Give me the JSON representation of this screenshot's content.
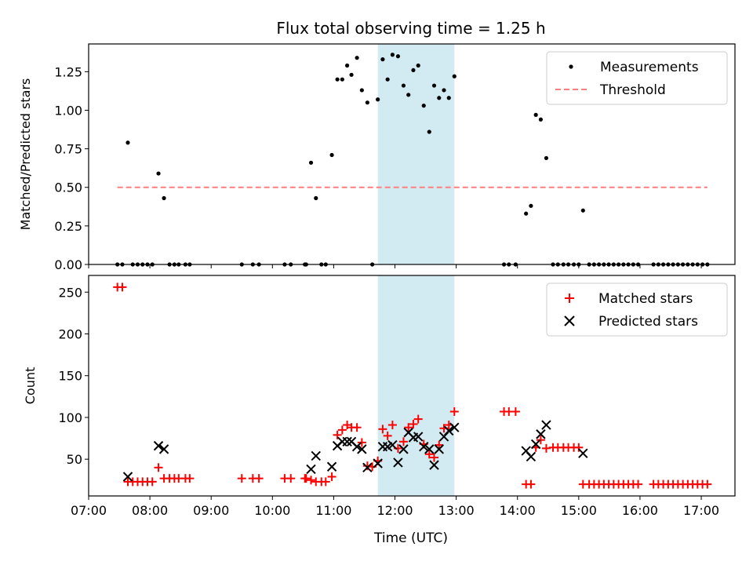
{
  "chart_data": [
    {
      "type": "scatter",
      "title": "Flux total observing time = 1.25 h",
      "ylabel": "Matched/Predicted stars",
      "xlabel": "",
      "xlim": [
        7.0,
        17.55
      ],
      "ylim": [
        0.0,
        1.43
      ],
      "yticks": [
        0.0,
        0.25,
        0.5,
        0.75,
        1.0,
        1.25
      ],
      "ytick_labels": [
        "0.00",
        "0.25",
        "0.50",
        "0.75",
        "1.00",
        "1.25"
      ],
      "highlight_span": [
        11.72,
        12.97
      ],
      "colors": {
        "measurements": "#000000",
        "threshold": "#ff7f7f",
        "span": "#add8e6"
      },
      "legend": {
        "position": "top-right",
        "entries": [
          "Measurements",
          "Threshold"
        ]
      },
      "threshold": {
        "name": "Threshold",
        "value": 0.5,
        "x": [
          7.47,
          17.1
        ]
      },
      "series": [
        {
          "name": "Measurements",
          "marker": "dot",
          "points": [
            [
              7.47,
              0
            ],
            [
              7.55,
              0
            ],
            [
              7.64,
              0.79
            ],
            [
              7.72,
              0
            ],
            [
              7.8,
              0
            ],
            [
              7.88,
              0
            ],
            [
              7.96,
              0
            ],
            [
              8.04,
              0
            ],
            [
              8.14,
              0.59
            ],
            [
              8.23,
              0.43
            ],
            [
              8.32,
              0
            ],
            [
              8.4,
              0
            ],
            [
              8.47,
              0
            ],
            [
              8.58,
              0
            ],
            [
              8.65,
              0
            ],
            [
              9.5,
              0
            ],
            [
              9.68,
              0
            ],
            [
              9.78,
              0
            ],
            [
              10.2,
              0
            ],
            [
              10.3,
              0
            ],
            [
              10.53,
              0
            ],
            [
              10.55,
              0
            ],
            [
              10.63,
              0.66
            ],
            [
              10.71,
              0.43
            ],
            [
              10.8,
              0
            ],
            [
              10.87,
              0
            ],
            [
              10.97,
              0.71
            ],
            [
              11.06,
              1.2
            ],
            [
              11.14,
              1.2
            ],
            [
              11.22,
              1.29
            ],
            [
              11.29,
              1.23
            ],
            [
              11.38,
              1.34
            ],
            [
              11.46,
              1.13
            ],
            [
              11.55,
              1.05
            ],
            [
              11.63,
              0
            ],
            [
              11.72,
              1.07
            ],
            [
              11.8,
              1.33
            ],
            [
              11.88,
              1.2
            ],
            [
              11.96,
              1.36
            ],
            [
              12.05,
              1.35
            ],
            [
              12.14,
              1.16
            ],
            [
              12.22,
              1.1
            ],
            [
              12.3,
              1.26
            ],
            [
              12.38,
              1.29
            ],
            [
              12.47,
              1.03
            ],
            [
              12.56,
              0.86
            ],
            [
              12.64,
              1.16
            ],
            [
              12.72,
              1.08
            ],
            [
              12.8,
              1.13
            ],
            [
              12.88,
              1.08
            ],
            [
              12.97,
              1.22
            ],
            [
              13.78,
              0
            ],
            [
              13.86,
              0
            ],
            [
              13.97,
              0
            ],
            [
              14.14,
              0.33
            ],
            [
              14.22,
              0.38
            ],
            [
              14.3,
              0.97
            ],
            [
              14.38,
              0.94
            ],
            [
              14.47,
              0.69
            ],
            [
              14.58,
              0
            ],
            [
              14.66,
              0
            ],
            [
              14.75,
              0
            ],
            [
              14.83,
              0
            ],
            [
              14.92,
              0
            ],
            [
              15.0,
              0
            ],
            [
              15.07,
              0.35
            ],
            [
              15.17,
              0
            ],
            [
              15.25,
              0
            ],
            [
              15.33,
              0
            ],
            [
              15.41,
              0
            ],
            [
              15.49,
              0
            ],
            [
              15.57,
              0
            ],
            [
              15.65,
              0
            ],
            [
              15.73,
              0
            ],
            [
              15.81,
              0
            ],
            [
              15.89,
              0
            ],
            [
              15.97,
              0
            ],
            [
              16.22,
              0
            ],
            [
              16.3,
              0
            ],
            [
              16.38,
              0
            ],
            [
              16.46,
              0
            ],
            [
              16.54,
              0
            ],
            [
              16.62,
              0
            ],
            [
              16.7,
              0
            ],
            [
              16.78,
              0
            ],
            [
              16.86,
              0
            ],
            [
              16.94,
              0
            ],
            [
              17.02,
              0
            ],
            [
              17.1,
              0
            ]
          ]
        }
      ]
    },
    {
      "type": "scatter",
      "title": "",
      "ylabel": "Count",
      "xlabel": "Time (UTC)",
      "xlim": [
        7.0,
        17.55
      ],
      "ylim": [
        6,
        270
      ],
      "yticks": [
        50,
        100,
        150,
        200,
        250
      ],
      "ytick_labels": [
        "50",
        "100",
        "150",
        "200",
        "250"
      ],
      "xticks": [
        7,
        8,
        9,
        10,
        11,
        12,
        13,
        14,
        15,
        16,
        17
      ],
      "xtick_labels": [
        "07:00",
        "08:00",
        "09:00",
        "10:00",
        "11:00",
        "12:00",
        "13:00",
        "14:00",
        "15:00",
        "16:00",
        "17:00"
      ],
      "highlight_span": [
        11.72,
        12.97
      ],
      "colors": {
        "matched": "#ff0000",
        "predicted": "#000000",
        "span": "#add8e6"
      },
      "legend": {
        "position": "top-right",
        "entries": [
          "Matched stars",
          "Predicted stars"
        ]
      },
      "series": [
        {
          "name": "Matched stars",
          "marker": "plus",
          "points": [
            [
              7.47,
              256
            ],
            [
              7.55,
              256
            ],
            [
              7.64,
              23
            ],
            [
              7.72,
              23
            ],
            [
              7.8,
              23
            ],
            [
              7.88,
              23
            ],
            [
              7.96,
              23
            ],
            [
              8.04,
              23
            ],
            [
              8.14,
              40
            ],
            [
              8.23,
              27
            ],
            [
              8.32,
              27
            ],
            [
              8.4,
              27
            ],
            [
              8.47,
              27
            ],
            [
              8.58,
              27
            ],
            [
              8.65,
              27
            ],
            [
              9.5,
              27
            ],
            [
              9.68,
              27
            ],
            [
              9.78,
              27
            ],
            [
              10.2,
              27
            ],
            [
              10.3,
              27
            ],
            [
              10.53,
              27
            ],
            [
              10.55,
              27
            ],
            [
              10.63,
              25
            ],
            [
              10.71,
              23
            ],
            [
              10.8,
              23
            ],
            [
              10.87,
              23
            ],
            [
              10.97,
              29
            ],
            [
              11.06,
              79
            ],
            [
              11.14,
              85
            ],
            [
              11.22,
              91
            ],
            [
              11.29,
              88
            ],
            [
              11.38,
              88
            ],
            [
              11.46,
              70
            ],
            [
              11.55,
              42
            ],
            [
              11.63,
              41
            ],
            [
              11.72,
              48
            ],
            [
              11.8,
              86
            ],
            [
              11.88,
              78
            ],
            [
              11.96,
              91
            ],
            [
              12.05,
              63
            ],
            [
              12.14,
              71
            ],
            [
              12.22,
              88
            ],
            [
              12.3,
              92
            ],
            [
              12.38,
              98
            ],
            [
              12.47,
              68
            ],
            [
              12.56,
              56
            ],
            [
              12.64,
              52
            ],
            [
              12.72,
              67
            ],
            [
              12.8,
              87
            ],
            [
              12.88,
              91
            ],
            [
              12.97,
              107
            ],
            [
              13.78,
              107
            ],
            [
              13.86,
              107
            ],
            [
              13.97,
              107
            ],
            [
              14.14,
              20
            ],
            [
              14.22,
              20
            ],
            [
              14.3,
              64
            ],
            [
              14.38,
              73
            ],
            [
              14.47,
              63
            ],
            [
              14.58,
              64
            ],
            [
              14.66,
              64
            ],
            [
              14.75,
              64
            ],
            [
              14.83,
              64
            ],
            [
              14.92,
              64
            ],
            [
              15.0,
              64
            ],
            [
              15.07,
              20
            ],
            [
              15.17,
              20
            ],
            [
              15.25,
              20
            ],
            [
              15.33,
              20
            ],
            [
              15.41,
              20
            ],
            [
              15.49,
              20
            ],
            [
              15.57,
              20
            ],
            [
              15.65,
              20
            ],
            [
              15.73,
              20
            ],
            [
              15.81,
              20
            ],
            [
              15.89,
              20
            ],
            [
              15.97,
              20
            ],
            [
              16.22,
              20
            ],
            [
              16.3,
              20
            ],
            [
              16.38,
              20
            ],
            [
              16.46,
              20
            ],
            [
              16.54,
              20
            ],
            [
              16.62,
              20
            ],
            [
              16.7,
              20
            ],
            [
              16.78,
              20
            ],
            [
              16.86,
              20
            ],
            [
              16.94,
              20
            ],
            [
              17.02,
              20
            ],
            [
              17.1,
              20
            ]
          ]
        },
        {
          "name": "Predicted stars",
          "marker": "x",
          "points": [
            [
              7.64,
              29
            ],
            [
              8.14,
              66
            ],
            [
              8.23,
              62
            ],
            [
              10.63,
              38
            ],
            [
              10.71,
              54
            ],
            [
              10.97,
              41
            ],
            [
              11.06,
              66
            ],
            [
              11.14,
              71
            ],
            [
              11.22,
              71
            ],
            [
              11.29,
              71
            ],
            [
              11.38,
              65
            ],
            [
              11.46,
              62
            ],
            [
              11.55,
              40
            ],
            [
              11.72,
              45
            ],
            [
              11.8,
              65
            ],
            [
              11.88,
              65
            ],
            [
              11.96,
              67
            ],
            [
              12.05,
              46
            ],
            [
              12.14,
              62
            ],
            [
              12.22,
              82
            ],
            [
              12.3,
              76
            ],
            [
              12.38,
              77
            ],
            [
              12.47,
              65
            ],
            [
              12.56,
              62
            ],
            [
              12.64,
              43
            ],
            [
              12.72,
              62
            ],
            [
              12.8,
              77
            ],
            [
              12.88,
              84
            ],
            [
              12.97,
              88
            ],
            [
              14.14,
              60
            ],
            [
              14.22,
              53
            ],
            [
              14.3,
              68
            ],
            [
              14.38,
              80
            ],
            [
              14.47,
              91
            ],
            [
              15.07,
              57
            ]
          ]
        }
      ]
    }
  ]
}
